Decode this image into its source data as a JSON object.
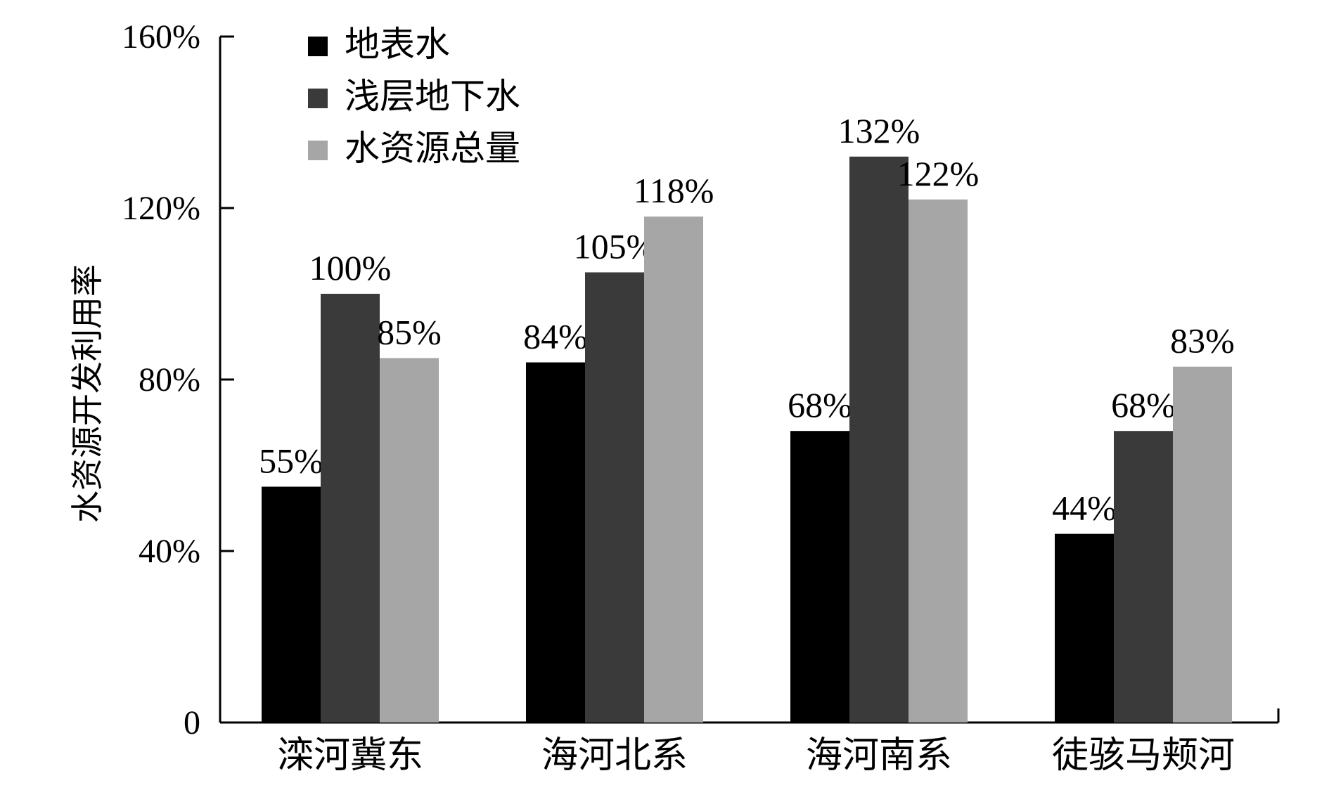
{
  "chart_data": {
    "type": "bar",
    "ylabel": "水资源开发利用率",
    "yticks": [
      "0",
      "40%",
      "80%",
      "120%",
      "160%"
    ],
    "ylim": [
      0,
      160
    ],
    "categories": [
      "滦河冀东",
      "海河北系",
      "海河南系",
      "徒骇马颊河"
    ],
    "series": [
      {
        "name": "地表水",
        "color": "#000000",
        "values": [
          55,
          84,
          68,
          44
        ],
        "labels": [
          "55%",
          "84%",
          "68%",
          "44%"
        ]
      },
      {
        "name": "浅层地下水",
        "color": "#3a3a3a",
        "values": [
          100,
          105,
          132,
          68
        ],
        "labels": [
          "100%",
          "105%",
          "132%",
          "68%"
        ]
      },
      {
        "name": "水资源总量",
        "color": "#a6a6a6",
        "values": [
          85,
          118,
          122,
          83
        ],
        "labels": [
          "85%",
          "118%",
          "122%",
          "83%"
        ]
      }
    ],
    "legend_position": "top-left",
    "grid": false
  }
}
